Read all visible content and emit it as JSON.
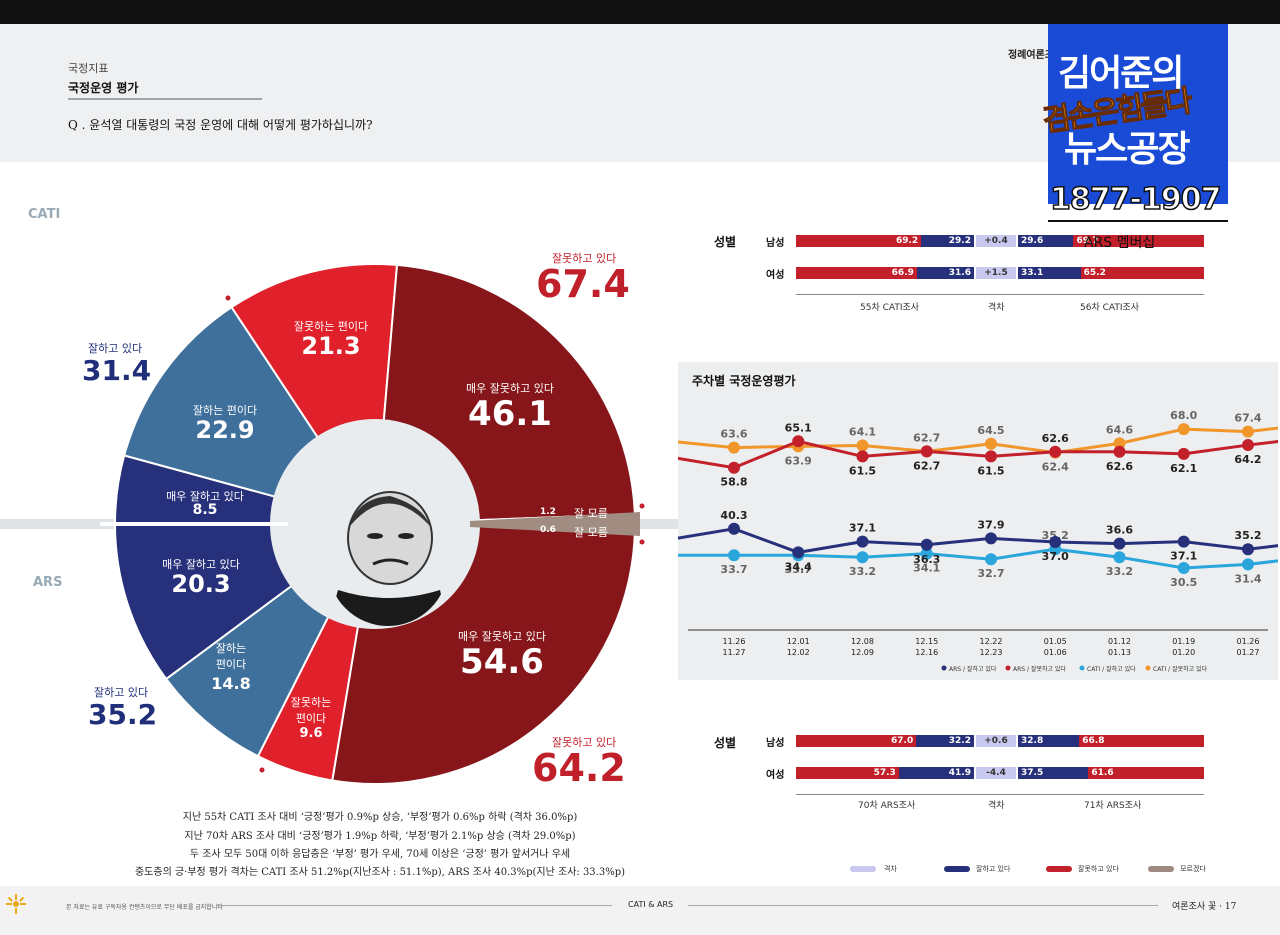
{
  "header": {
    "section": "국정지표",
    "title": "국정운영 평가",
    "question": "Q . 윤석열 대통령의 국정 운영에 대해 어떻게 평가하십니까?",
    "publisher": "정례여론조",
    "cati": "CATI",
    "ars": "ARS"
  },
  "overlay": {
    "line1": "김어준의",
    "line2": "겸손은힘들다",
    "line3": "뉴스공장",
    "phone": "1877-1907",
    "membership": "ARS 멤버십"
  },
  "donut": {
    "cati_neg_total_label": "잘못하고 있다",
    "cati_neg_total": "67.4",
    "cati_pos_total_label": "잘하고 있다",
    "cati_pos_total": "31.4",
    "ars_neg_total_label": "잘못하고 있다",
    "ars_neg_total": "64.2",
    "ars_pos_total_label": "잘하고 있다",
    "ars_pos_total": "35.2",
    "segments": {
      "cati_neg_somewhat_label": "잘못하는 편이다",
      "cati_neg_somewhat": "21.3",
      "cati_neg_very_label": "매우 잘못하고 있다",
      "cati_neg_very": "46.1",
      "cati_pos_somewhat_label": "잘하는 편이다",
      "cati_pos_somewhat": "22.9",
      "cati_pos_very_label": "매우 잘하고 있다",
      "cati_pos_very": "8.5",
      "cati_dk_value": "1.2",
      "dk_label": "잘 모름",
      "ars_dk_value": "0.6",
      "dk_label2": "잘 모름",
      "ars_pos_very_label": "매우 잘하고 있다",
      "ars_pos_very": "20.3",
      "ars_pos_somewhat_label1": "잘하는",
      "ars_pos_somewhat_label2": "편이다",
      "ars_pos_somewhat": "14.8",
      "ars_neg_somewhat_label1": "잘못하는",
      "ars_neg_somewhat_label2": "편이다",
      "ars_neg_somewhat": "9.6",
      "ars_neg_very_label": "매우 잘못하고 있다",
      "ars_neg_very": "54.6"
    }
  },
  "gender_top": {
    "title": "성별",
    "rows": [
      {
        "label": "남성",
        "a_red": "69.2",
        "a_blue": "29.2",
        "diff": "+0.4",
        "b_blue": "29.6",
        "b_red": "69.7"
      },
      {
        "label": "여성",
        "a_red": "66.9",
        "a_blue": "31.6",
        "diff": "+1.5",
        "b_blue": "33.1",
        "b_red": "65.2"
      }
    ],
    "col_a": "55차 CATI조사",
    "col_mid": "격차",
    "col_b": "56차 CATI조사"
  },
  "gender_bottom": {
    "title": "성별",
    "rows": [
      {
        "label": "남성",
        "a_red": "67.0",
        "a_blue": "32.2",
        "diff": "+0.6",
        "b_blue": "32.8",
        "b_red": "66.8"
      },
      {
        "label": "여성",
        "a_red": "57.3",
        "a_blue": "41.9",
        "diff": "-4.4",
        "b_blue": "37.5",
        "b_red": "61.6"
      }
    ],
    "col_a": "70차 ARS조사",
    "col_mid": "격차",
    "col_b": "71차 ARS조사"
  },
  "chart_data": {
    "type": "line",
    "title": "주차별 국정운영평가",
    "x": [
      "11.26 11.27",
      "12.01 12.02",
      "12.08 12.09",
      "12.15 12.16",
      "12.22 12.23",
      "01.05 01.06",
      "01.12 01.13",
      "01.19 01.20",
      "01.26 01.27"
    ],
    "x_top": [
      "11.26",
      "12.01",
      "12.08",
      "12.15",
      "12.22",
      "01.05",
      "01.12",
      "01.19",
      "01.26"
    ],
    "x_bottom": [
      "11.27",
      "12.02",
      "12.09",
      "12.16",
      "12.23",
      "01.06",
      "01.13",
      "01.20",
      "01.27"
    ],
    "series": [
      {
        "name": "ARS / 잘하고 있다",
        "color": "#27307a",
        "values": [
          40.3,
          34.4,
          37.1,
          36.3,
          37.9,
          37.0,
          36.6,
          37.1,
          35.2
        ]
      },
      {
        "name": "ARS / 잘못하고 있다",
        "color": "#c2202b",
        "values": [
          58.8,
          65.1,
          61.5,
          62.7,
          61.5,
          62.6,
          62.6,
          62.1,
          64.2
        ]
      },
      {
        "name": "CATI / 잘하고 있다",
        "color": "#2aa6dd",
        "values": [
          33.7,
          33.7,
          33.2,
          34.1,
          32.7,
          35.2,
          33.2,
          30.5,
          31.4
        ]
      },
      {
        "name": "CATI / 잘못하고 있다",
        "color": "#f0962a",
        "values": [
          63.6,
          63.9,
          64.1,
          62.7,
          64.5,
          62.4,
          64.6,
          68.0,
          67.4
        ]
      }
    ],
    "legend_position": "bottom-right"
  },
  "legend_bottom": [
    "격차",
    "잘하고 있다",
    "잘못하고 있다",
    "모르겠다"
  ],
  "notes": [
    "지난 55차 CATI 조사 대비 ‘긍정’평가 0.9%p 상승, ‘부정’평가 0.6%p 하락 (격차 36.0%p)",
    "지난 70차 ARS 조사 대비 ‘긍정’평가 1.9%p 하락, ‘부정’평가 2.1%p 상승 (격차 29.0%p)",
    "두 조사 모두 50대 이하 응답층은 ‘부정’ 평가 우세, 70세 이상은 ‘긍정’ 평가 앞서거나 우세",
    "중도층의 긍·부정 평가 격차는 CATI 조사 51.2%p(지난조사 : 51.1%p), ARS 조사 40.3%p(지난 조사: 33.3%p)"
  ],
  "footer": {
    "left": "본 자료는 유료 구독자용 컨텐츠이므로 무단 배포를 금지합니다",
    "center": "CATI & ARS",
    "right": "여론조사 꽃  ·  17"
  }
}
